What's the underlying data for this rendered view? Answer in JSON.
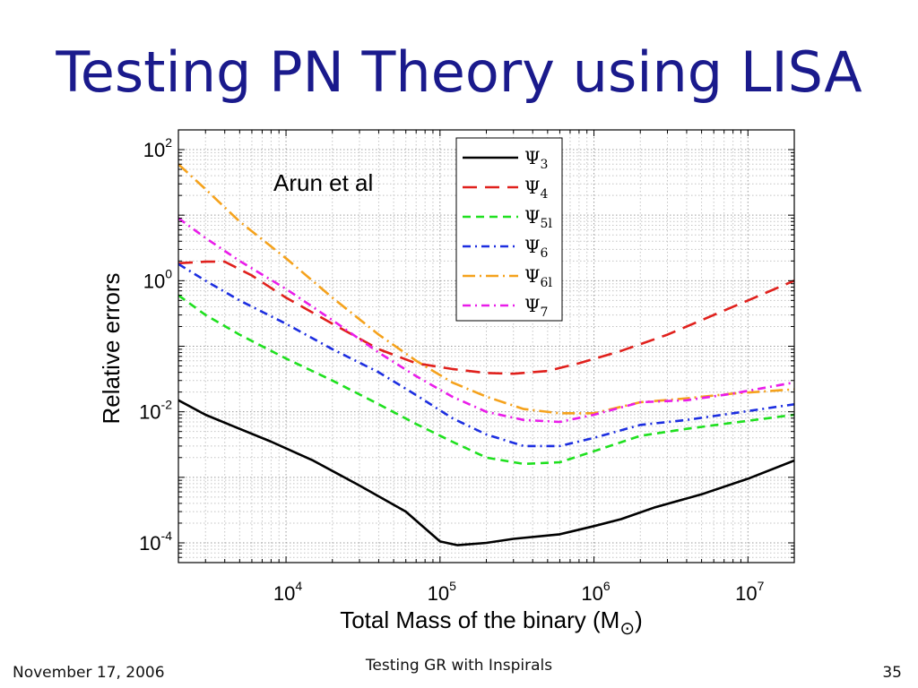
{
  "slide": {
    "title": "Testing PN Theory using LISA",
    "footer_date": "November 17, 2006",
    "footer_center": "Testing GR with Inspirals",
    "page_number": "35"
  },
  "chart_data": {
    "type": "line",
    "title": "",
    "xlabel": "Total Mass of the binary (M",
    "xlabel_symbol": "⊙",
    "xlabel_close": ")",
    "ylabel": "Relative errors",
    "x_scale": "log",
    "y_scale": "log",
    "xlim": [
      2000,
      20000000
    ],
    "ylim": [
      5e-05,
      200
    ],
    "x_ticks": [
      {
        "base": "10",
        "exp": "4",
        "value": 10000
      },
      {
        "base": "10",
        "exp": "5",
        "value": 100000
      },
      {
        "base": "10",
        "exp": "6",
        "value": 1000000
      },
      {
        "base": "10",
        "exp": "7",
        "value": 10000000
      }
    ],
    "y_ticks": [
      {
        "base": "10",
        "exp": "-4",
        "value": 0.0001
      },
      {
        "base": "10",
        "exp": "-2",
        "value": 0.01
      },
      {
        "base": "10",
        "exp": "0",
        "value": 1
      },
      {
        "base": "10",
        "exp": "2",
        "value": 100
      }
    ],
    "grid": true,
    "legend_position": "top-center",
    "annotation": "Arun et al",
    "series": [
      {
        "name": "Ψ",
        "sub": "3",
        "color": "#000000",
        "dash": "solid",
        "points": [
          [
            2000,
            0.015
          ],
          [
            3000,
            0.009
          ],
          [
            5000,
            0.0055
          ],
          [
            8000,
            0.0035
          ],
          [
            15000,
            0.0018
          ],
          [
            30000,
            0.00075
          ],
          [
            60000,
            0.0003
          ],
          [
            100000,
            0.000105
          ],
          [
            130000,
            9.2e-05
          ],
          [
            200000,
            0.0001
          ],
          [
            300000,
            0.000115
          ],
          [
            600000,
            0.000135
          ],
          [
            1000000,
            0.00018
          ],
          [
            1500000,
            0.00023
          ],
          [
            2500000,
            0.00035
          ],
          [
            5000000,
            0.00055
          ],
          [
            10000000,
            0.00095
          ],
          [
            20000000,
            0.0018
          ]
        ]
      },
      {
        "name": "Ψ",
        "sub": "4",
        "color": "#e0201c",
        "dash": "long-dash",
        "points": [
          [
            2000,
            1.85
          ],
          [
            3000,
            1.95
          ],
          [
            4000,
            1.95
          ],
          [
            6000,
            1.2
          ],
          [
            10000,
            0.55
          ],
          [
            20000,
            0.22
          ],
          [
            40000,
            0.09
          ],
          [
            70000,
            0.055
          ],
          [
            120000,
            0.045
          ],
          [
            200000,
            0.039
          ],
          [
            300000,
            0.038
          ],
          [
            500000,
            0.042
          ],
          [
            800000,
            0.055
          ],
          [
            1500000,
            0.085
          ],
          [
            3000000,
            0.15
          ],
          [
            6000000,
            0.3
          ],
          [
            10000000,
            0.5
          ],
          [
            20000000,
            1.0
          ]
        ]
      },
      {
        "name": "Ψ",
        "sub": "5l",
        "color": "#1fe01f",
        "dash": "dash",
        "points": [
          [
            2000,
            0.6
          ],
          [
            3000,
            0.3
          ],
          [
            5000,
            0.15
          ],
          [
            10000,
            0.065
          ],
          [
            20000,
            0.03
          ],
          [
            40000,
            0.013
          ],
          [
            70000,
            0.0065
          ],
          [
            120000,
            0.0035
          ],
          [
            200000,
            0.002
          ],
          [
            350000,
            0.0016
          ],
          [
            600000,
            0.0017
          ],
          [
            1000000,
            0.0025
          ],
          [
            2000000,
            0.0043
          ],
          [
            4000000,
            0.0055
          ],
          [
            8000000,
            0.0068
          ],
          [
            20000000,
            0.009
          ]
        ]
      },
      {
        "name": "Ψ",
        "sub": "6",
        "color": "#1c2ee0",
        "dash": "dash-dot",
        "points": [
          [
            2000,
            1.8
          ],
          [
            3000,
            1.0
          ],
          [
            5000,
            0.5
          ],
          [
            10000,
            0.22
          ],
          [
            20000,
            0.09
          ],
          [
            40000,
            0.04
          ],
          [
            70000,
            0.018
          ],
          [
            120000,
            0.008
          ],
          [
            200000,
            0.0045
          ],
          [
            350000,
            0.003
          ],
          [
            600000,
            0.003
          ],
          [
            1000000,
            0.004
          ],
          [
            2000000,
            0.0063
          ],
          [
            4000000,
            0.0075
          ],
          [
            8000000,
            0.0095
          ],
          [
            20000000,
            0.013
          ]
        ]
      },
      {
        "name": "Ψ",
        "sub": "6l",
        "color": "#f5a21c",
        "dash": "long-dash-dot",
        "points": [
          [
            2000,
            60
          ],
          [
            3000,
            25
          ],
          [
            5000,
            8
          ],
          [
            10000,
            2.2
          ],
          [
            20000,
            0.55
          ],
          [
            40000,
            0.15
          ],
          [
            70000,
            0.06
          ],
          [
            120000,
            0.028
          ],
          [
            200000,
            0.017
          ],
          [
            350000,
            0.011
          ],
          [
            600000,
            0.0095
          ],
          [
            1000000,
            0.0095
          ],
          [
            2000000,
            0.014
          ],
          [
            4000000,
            0.016
          ],
          [
            8000000,
            0.019
          ],
          [
            20000000,
            0.022
          ]
        ]
      },
      {
        "name": "Ψ",
        "sub": "7",
        "color": "#e91ce9",
        "dash": "dash-dot",
        "points": [
          [
            2000,
            9
          ],
          [
            3000,
            4.5
          ],
          [
            5000,
            2.0
          ],
          [
            10000,
            0.75
          ],
          [
            20000,
            0.25
          ],
          [
            40000,
            0.08
          ],
          [
            70000,
            0.035
          ],
          [
            120000,
            0.017
          ],
          [
            200000,
            0.01
          ],
          [
            350000,
            0.0075
          ],
          [
            600000,
            0.007
          ],
          [
            1000000,
            0.009
          ],
          [
            2000000,
            0.014
          ],
          [
            4000000,
            0.015
          ],
          [
            8000000,
            0.019
          ],
          [
            20000000,
            0.028
          ]
        ]
      }
    ]
  }
}
